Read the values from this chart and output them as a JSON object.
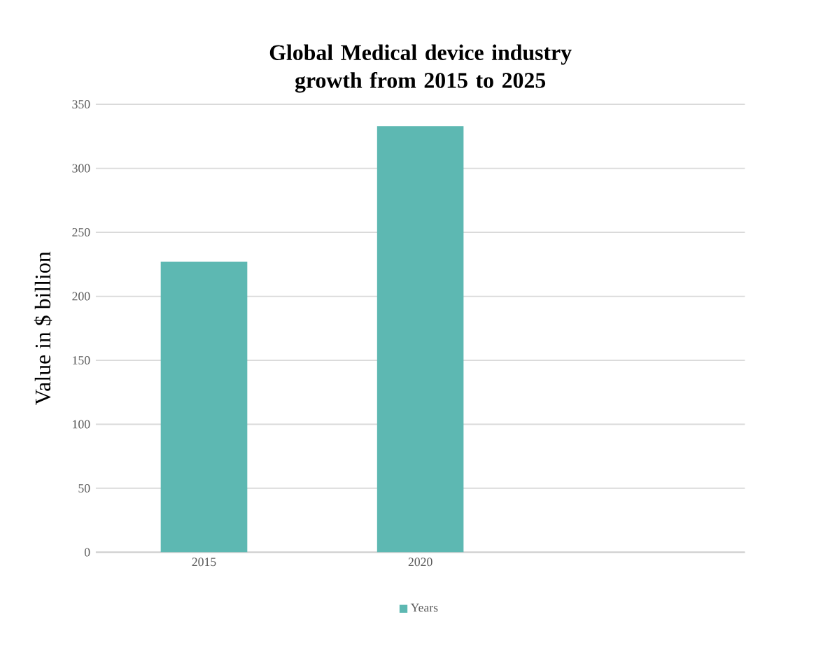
{
  "chart_data": {
    "type": "bar",
    "title": "Global  Medical device industry growth from 2015 to 2025",
    "ylabel": "Value in $ billion",
    "categories": [
      "2015",
      "2020",
      null
    ],
    "series": [
      {
        "name": "Years",
        "color": "#5db8b2",
        "values": [
          227,
          333,
          null
        ]
      }
    ],
    "ylim": [
      0,
      350
    ],
    "yticks": [
      0,
      50,
      100,
      150,
      200,
      250,
      300,
      350
    ],
    "grid": "y",
    "legend": "bottom"
  }
}
